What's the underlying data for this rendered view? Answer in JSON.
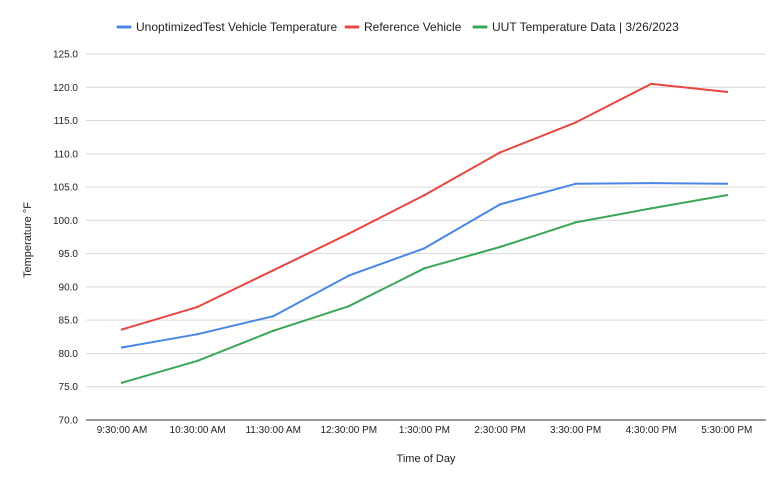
{
  "chart_data": {
    "type": "line",
    "xlabel": "Time of Day",
    "ylabel": "Temperature °F",
    "categories": [
      "9:30:00 AM",
      "10:30:00 AM",
      "11:30:00 AM",
      "12:30:00 PM",
      "1:30:00 PM",
      "2:30:00 PM",
      "3:30:00 PM",
      "4:30:00 PM",
      "5:30:00 PM"
    ],
    "ylim": [
      70,
      125
    ],
    "yticks": [
      "70.0",
      "75.0",
      "80.0",
      "85.0",
      "90.0",
      "95.0",
      "100.0",
      "105.0",
      "110.0",
      "115.0",
      "120.0",
      "125.0"
    ],
    "grid": true,
    "legend_position": "top",
    "series": [
      {
        "name": "UnoptimizedTest Vehicle Temperature",
        "color": "#4a86e8",
        "values": [
          80.9,
          82.9,
          85.6,
          91.7,
          95.8,
          102.4,
          105.5,
          105.6,
          105.5
        ]
      },
      {
        "name": "Reference Vehicle",
        "color": "#e8473f",
        "values": [
          83.6,
          87.0,
          92.5,
          98.0,
          103.8,
          110.2,
          114.7,
          120.5,
          119.3
        ]
      },
      {
        "name": "UUT Temperature Data | 3/26/2023",
        "color": "#3aa757",
        "values": [
          75.6,
          78.9,
          83.4,
          87.1,
          92.8,
          96.0,
          99.7,
          101.8,
          103.8
        ]
      }
    ]
  }
}
